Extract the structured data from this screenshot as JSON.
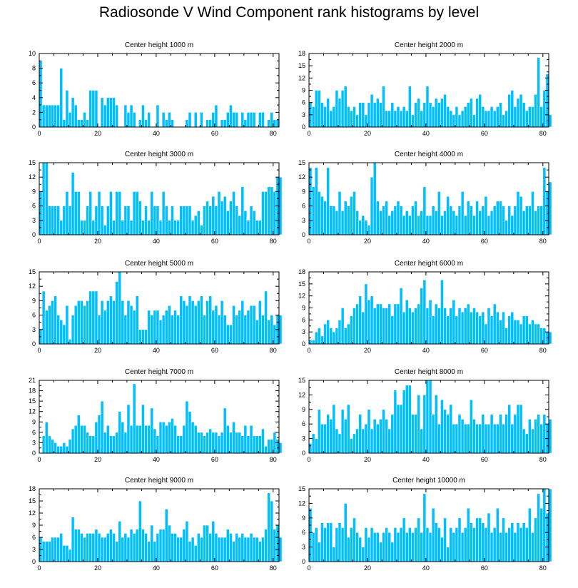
{
  "chart_data": {
    "type": "bar",
    "title": "Radiosonde V Wind Component rank histograms by level",
    "bar_color": "#00bfff",
    "x_range": [
      0,
      82
    ],
    "x_ticks": [
      0,
      20,
      40,
      60,
      80
    ],
    "panels": [
      {
        "title": "Center height 1000 m",
        "ylim": [
          0,
          10
        ],
        "yticks": [
          0,
          2,
          4,
          6,
          8,
          10
        ],
        "values": [
          9,
          3,
          3,
          3,
          3,
          3,
          3,
          8,
          1,
          5,
          2,
          4,
          3,
          1,
          1,
          2,
          1,
          5,
          5,
          5,
          0,
          4,
          3,
          4,
          4,
          4,
          3,
          0,
          0,
          3,
          2,
          3,
          2,
          0,
          1,
          3,
          1,
          2,
          0,
          0,
          3,
          0,
          2,
          1,
          2,
          1,
          0,
          0,
          0,
          0,
          1,
          2,
          0,
          2,
          0,
          2,
          0,
          1,
          1,
          2,
          3,
          0,
          1,
          1,
          2,
          3,
          2,
          2,
          0,
          2,
          1,
          2,
          2,
          2,
          0,
          2,
          2,
          0,
          1,
          2,
          1,
          1,
          0
        ]
      },
      {
        "title": "Center height 2000 m",
        "ylim": [
          0,
          18
        ],
        "yticks": [
          0,
          3,
          6,
          9,
          12,
          15,
          18
        ],
        "values": [
          6,
          5,
          9,
          9,
          6,
          5,
          7,
          4,
          5,
          9,
          7,
          9,
          10,
          5,
          4,
          5,
          3,
          6,
          6,
          3,
          6,
          8,
          6,
          7,
          6,
          10,
          4,
          4,
          6,
          4,
          5,
          4,
          5,
          4,
          10,
          3,
          6,
          7,
          4,
          6,
          10,
          6,
          5,
          7,
          6,
          7,
          8,
          5,
          4,
          3,
          5,
          3,
          4,
          5,
          6,
          7,
          3,
          7,
          8,
          5,
          4,
          4,
          5,
          4,
          5,
          6,
          3,
          4,
          8,
          9,
          5,
          7,
          8,
          6,
          4,
          5,
          5,
          8,
          17,
          5,
          9,
          13,
          3
        ]
      },
      {
        "title": "Center height 3000 m",
        "ylim": [
          0,
          15
        ],
        "yticks": [
          0,
          3,
          6,
          9,
          12,
          15
        ],
        "values": [
          9,
          15,
          15,
          6,
          6,
          6,
          6,
          3,
          6,
          9,
          6,
          13,
          9,
          9,
          3,
          3,
          6,
          9,
          3,
          6,
          9,
          6,
          2,
          6,
          9,
          3,
          9,
          9,
          3,
          6,
          6,
          3,
          9,
          9,
          7,
          3,
          6,
          3,
          9,
          6,
          6,
          3,
          9,
          6,
          3,
          6,
          3,
          3,
          6,
          6,
          6,
          6,
          3,
          4,
          5,
          2,
          6,
          7,
          6,
          8,
          6,
          9,
          7,
          8,
          5,
          7,
          9,
          6,
          4,
          10,
          5,
          3,
          6,
          5,
          3,
          3,
          9,
          9,
          10,
          10,
          9,
          12,
          12
        ]
      },
      {
        "title": "Center height 4000 m",
        "ylim": [
          0,
          15
        ],
        "yticks": [
          0,
          3,
          6,
          9,
          12,
          15
        ],
        "values": [
          14,
          10,
          14,
          9,
          8,
          7,
          14,
          6,
          6,
          5,
          9,
          5,
          7,
          6,
          8,
          9,
          5,
          3,
          4,
          3,
          2,
          12,
          15,
          7,
          5,
          6,
          7,
          4,
          5,
          6,
          7,
          6,
          4,
          5,
          4,
          6,
          7,
          4,
          5,
          10,
          4,
          4,
          6,
          5,
          9,
          4,
          5,
          8,
          6,
          5,
          4,
          6,
          9,
          4,
          7,
          6,
          4,
          7,
          5,
          6,
          8,
          4,
          5,
          6,
          7,
          7,
          6,
          3,
          6,
          4,
          6,
          9,
          8,
          5,
          6,
          6,
          9,
          5,
          6,
          6,
          14,
          9,
          11
        ]
      },
      {
        "title": "Center height 5000 m",
        "ylim": [
          0,
          15
        ],
        "yticks": [
          0,
          3,
          6,
          9,
          12,
          15
        ],
        "values": [
          3,
          11,
          7,
          8,
          9,
          10,
          6,
          5,
          4,
          8,
          1,
          6,
          8,
          9,
          9,
          8,
          9,
          11,
          11,
          11,
          6,
          9,
          7,
          9,
          10,
          9,
          13,
          15,
          9,
          6,
          9,
          8,
          7,
          10,
          3,
          3,
          3,
          7,
          6,
          7,
          7,
          5,
          6,
          7,
          8,
          6,
          7,
          6,
          10,
          9,
          8,
          10,
          9,
          8,
          9,
          10,
          6,
          9,
          10,
          7,
          8,
          6,
          9,
          6,
          4,
          4,
          8,
          6,
          7,
          9,
          6,
          7,
          8,
          8,
          5,
          9,
          6,
          11,
          5,
          6,
          4,
          6,
          6
        ]
      },
      {
        "title": "Center height 6000 m",
        "ylim": [
          0,
          18
        ],
        "yticks": [
          0,
          3,
          6,
          9,
          12,
          15,
          18
        ],
        "values": [
          1,
          1,
          3,
          4,
          2,
          5,
          6,
          4,
          3,
          4,
          6,
          9,
          4,
          5,
          7,
          9,
          10,
          12,
          8,
          15,
          11,
          12,
          9,
          10,
          10,
          9,
          9,
          10,
          7,
          10,
          10,
          14,
          8,
          11,
          9,
          8,
          9,
          10,
          14,
          16,
          9,
          11,
          7,
          10,
          9,
          16,
          9,
          7,
          9,
          11,
          7,
          9,
          8,
          9,
          10,
          8,
          9,
          8,
          7,
          8,
          5,
          9,
          7,
          10,
          8,
          6,
          8,
          4,
          7,
          8,
          6,
          6,
          5,
          7,
          7,
          5,
          6,
          5,
          5,
          4,
          4,
          3,
          3
        ]
      },
      {
        "title": "Center height 7000 m",
        "ylim": [
          0,
          21
        ],
        "yticks": [
          0,
          3,
          6,
          9,
          12,
          15,
          18,
          21
        ],
        "values": [
          0,
          5,
          9,
          5,
          4,
          3,
          2,
          2,
          3,
          2,
          4,
          7,
          8,
          11,
          8,
          8,
          6,
          5,
          5,
          9,
          11,
          15,
          6,
          8,
          5,
          5,
          6,
          12,
          9,
          6,
          14,
          8,
          20,
          8,
          8,
          14,
          8,
          8,
          13,
          7,
          5,
          9,
          9,
          8,
          9,
          10,
          8,
          5,
          5,
          8,
          15,
          12,
          9,
          8,
          6,
          6,
          5,
          6,
          7,
          6,
          6,
          5,
          6,
          13,
          8,
          6,
          9,
          6,
          6,
          5,
          8,
          5,
          8,
          5,
          5,
          5,
          7,
          2,
          4,
          4,
          6,
          4,
          3
        ]
      },
      {
        "title": "Center height 8000 m",
        "ylim": [
          0,
          15
        ],
        "yticks": [
          0,
          3,
          6,
          9,
          12,
          15
        ],
        "values": [
          2,
          4,
          3,
          9,
          6,
          6,
          8,
          7,
          10,
          5,
          4,
          9,
          7,
          10,
          3,
          4,
          5,
          8,
          5,
          6,
          9,
          5,
          7,
          6,
          7,
          9,
          7,
          5,
          8,
          13,
          10,
          10,
          13,
          14,
          14,
          8,
          8,
          12,
          5,
          12,
          15,
          15,
          8,
          12,
          6,
          11,
          9,
          8,
          10,
          6,
          6,
          8,
          7,
          6,
          6,
          11,
          7,
          6,
          6,
          8,
          6,
          6,
          8,
          6,
          6,
          8,
          6,
          8,
          10,
          6,
          8,
          10,
          10,
          5,
          4,
          7,
          5,
          7,
          8,
          6,
          8,
          6,
          7
        ]
      },
      {
        "title": "Center height 9000 m",
        "ylim": [
          0,
          18
        ],
        "yticks": [
          0,
          3,
          6,
          9,
          12,
          15,
          18
        ],
        "values": [
          6,
          5,
          5,
          5,
          6,
          6,
          6,
          7,
          4,
          4,
          3,
          11,
          8,
          8,
          7,
          6,
          7,
          7,
          7,
          8,
          7,
          6,
          6,
          7,
          8,
          7,
          5,
          10,
          6,
          7,
          6,
          8,
          7,
          8,
          15,
          8,
          7,
          5,
          9,
          5,
          7,
          8,
          8,
          13,
          9,
          7,
          7,
          6,
          6,
          8,
          10,
          5,
          6,
          4,
          7,
          6,
          9,
          9,
          7,
          10,
          7,
          6,
          6,
          6,
          8,
          7,
          5,
          7,
          6,
          7,
          6,
          6,
          7,
          6,
          6,
          5,
          6,
          8,
          17,
          15,
          8,
          9,
          6
        ]
      },
      {
        "title": "Center height 10000 m",
        "ylim": [
          0,
          15
        ],
        "yticks": [
          0,
          3,
          6,
          9,
          12,
          15
        ],
        "values": [
          11,
          6,
          7,
          4,
          8,
          7,
          8,
          8,
          3,
          7,
          8,
          7,
          12,
          5,
          7,
          9,
          6,
          5,
          3,
          7,
          5,
          7,
          6,
          6,
          4,
          6,
          7,
          6,
          4,
          7,
          6,
          7,
          9,
          6,
          7,
          6,
          7,
          9,
          6,
          14,
          7,
          6,
          11,
          8,
          7,
          5,
          9,
          3,
          7,
          6,
          7,
          9,
          6,
          7,
          11,
          8,
          7,
          9,
          9,
          8,
          7,
          10,
          6,
          7,
          11,
          6,
          9,
          6,
          7,
          8,
          6,
          8,
          7,
          8,
          7,
          11,
          6,
          9,
          14,
          11,
          15,
          10,
          15
        ]
      }
    ]
  }
}
